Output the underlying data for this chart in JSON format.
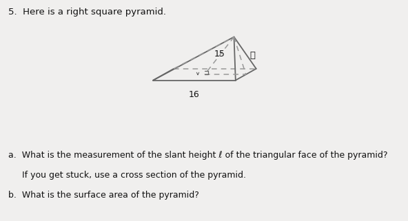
{
  "title_text": "5.  Here is a right square pyramid.",
  "label_15": "15",
  "label_16": "16",
  "label_l": "ℓ",
  "question_a": "a.  What is the measurement of the slant height ℓ of the triangular face of the pyramid?",
  "question_a2": "     If you get stuck, use a cross section of the pyramid.",
  "question_b": "b.  What is the surface area of the pyramid?",
  "bg_color": "#f0efee",
  "line_color": "#666666",
  "dashed_color": "#999999",
  "text_color": "#111111",
  "apex": [
    0.5,
    0.88
  ],
  "fl": [
    -0.52,
    0.28
  ],
  "fr": [
    0.52,
    0.28
  ],
  "br": [
    0.78,
    0.44
  ],
  "bl": [
    -0.26,
    0.44
  ]
}
